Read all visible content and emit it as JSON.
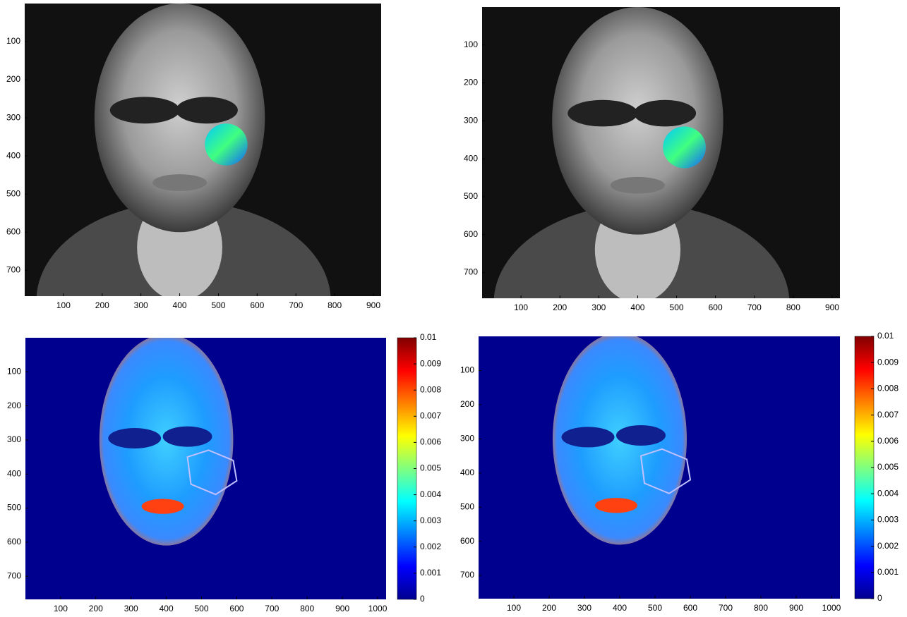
{
  "chart_data": [
    {
      "type": "image",
      "xlim": [
        0,
        920
      ],
      "ylim": [
        0,
        768
      ],
      "xticks": [
        100,
        200,
        300,
        400,
        500,
        600,
        700,
        800,
        900
      ],
      "yticks": [
        100,
        200,
        300,
        400,
        500,
        600,
        700
      ]
    },
    {
      "type": "image",
      "xlim": [
        0,
        920
      ],
      "ylim": [
        0,
        768
      ],
      "xticks": [
        100,
        200,
        300,
        400,
        500,
        600,
        700,
        800,
        900
      ],
      "yticks": [
        100,
        200,
        300,
        400,
        500,
        600,
        700
      ]
    },
    {
      "type": "heatmap",
      "xlim": [
        0,
        1024
      ],
      "ylim": [
        0,
        768
      ],
      "xticks": [
        100,
        200,
        300,
        400,
        500,
        600,
        700,
        800,
        900,
        1000
      ],
      "yticks": [
        100,
        200,
        300,
        400,
        500,
        600,
        700
      ],
      "clim": [
        0,
        0.01
      ],
      "cticks": [
        0,
        0.001,
        0.002,
        0.003,
        0.004,
        0.005,
        0.006,
        0.007,
        0.008,
        0.009,
        0.01
      ]
    },
    {
      "type": "heatmap",
      "xlim": [
        0,
        1024
      ],
      "ylim": [
        0,
        768
      ],
      "xticks": [
        100,
        200,
        300,
        400,
        500,
        600,
        700,
        800,
        900,
        1000
      ],
      "yticks": [
        100,
        200,
        300,
        400,
        500,
        600,
        700
      ],
      "clim": [
        0,
        0.01
      ],
      "cticks": [
        0,
        0.001,
        0.002,
        0.003,
        0.004,
        0.005,
        0.006,
        0.007,
        0.008,
        0.009,
        0.01
      ]
    }
  ]
}
